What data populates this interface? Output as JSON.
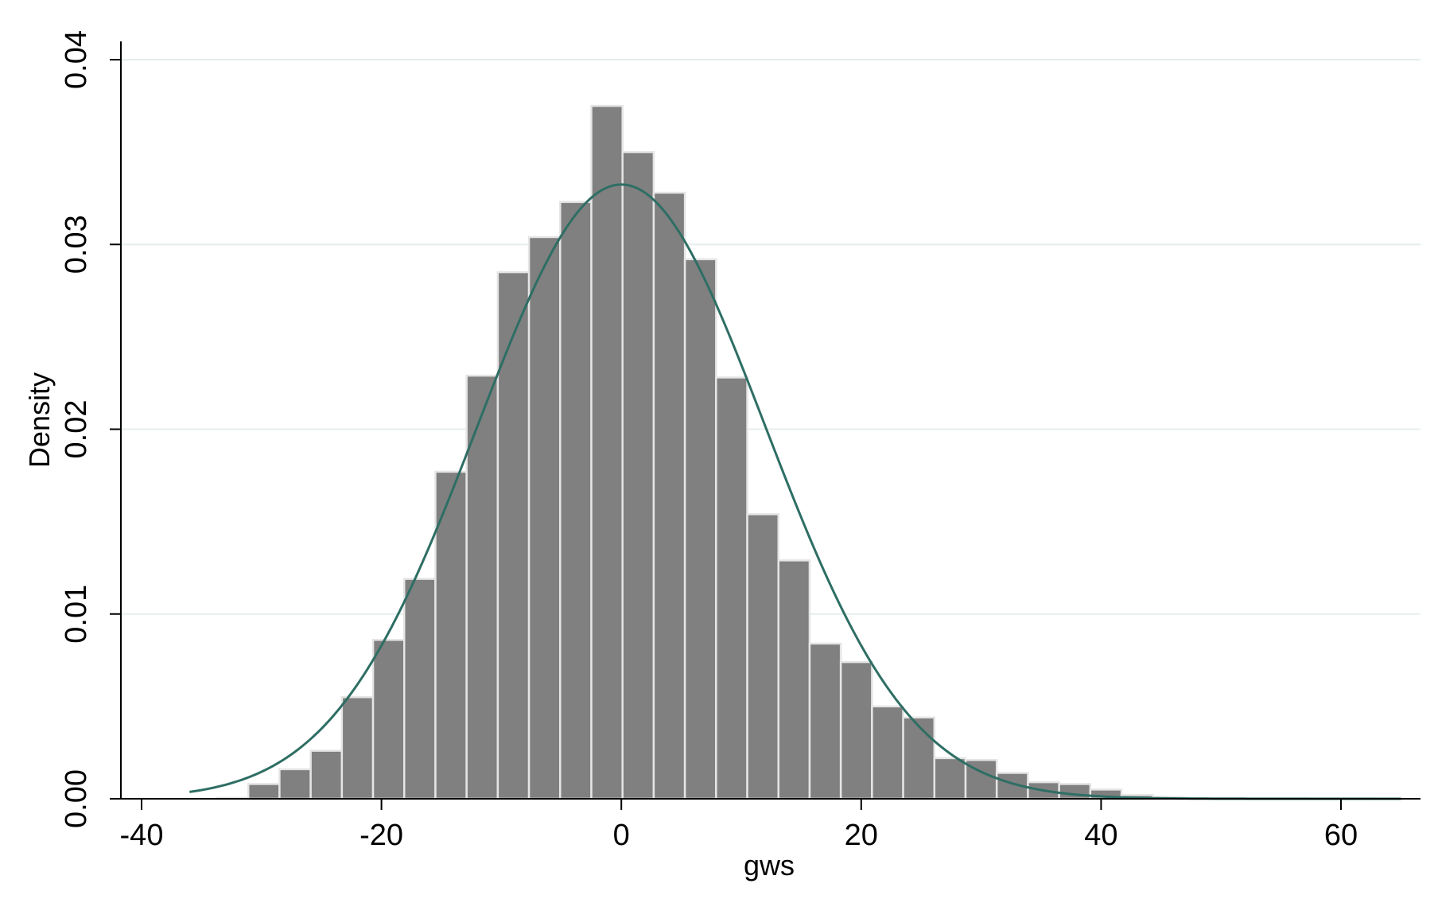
{
  "chart_data": {
    "type": "bar",
    "title": "",
    "xlabel": "gws",
    "ylabel": "Density",
    "xlim": [
      -42,
      67
    ],
    "ylim": [
      0,
      0.041
    ],
    "grid": true,
    "legend": "none",
    "xticks": [
      {
        "value": -40,
        "label": "-40"
      },
      {
        "value": -20,
        "label": "-20"
      },
      {
        "value": 0,
        "label": "0"
      },
      {
        "value": 20,
        "label": "20"
      },
      {
        "value": 40,
        "label": "40"
      },
      {
        "value": 60,
        "label": "60"
      }
    ],
    "yticks": [
      {
        "value": 0,
        "label": "0.00"
      },
      {
        "value": 0.01,
        "label": "0.01"
      },
      {
        "value": 0.02,
        "label": "0.02"
      },
      {
        "value": 0.03,
        "label": "0.03"
      },
      {
        "value": 0.04,
        "label": "0.04"
      }
    ],
    "bin_width": 2.6,
    "bins": [
      {
        "x0": -33.7,
        "value": 5e-05
      },
      {
        "x0": -31.1,
        "value": 0.0008
      },
      {
        "x0": -28.5,
        "value": 0.0016
      },
      {
        "x0": -25.9,
        "value": 0.0026
      },
      {
        "x0": -23.3,
        "value": 0.0055
      },
      {
        "x0": -20.7,
        "value": 0.0086
      },
      {
        "x0": -18.1,
        "value": 0.0119
      },
      {
        "x0": -15.5,
        "value": 0.0177
      },
      {
        "x0": -12.9,
        "value": 0.0229
      },
      {
        "x0": -10.3,
        "value": 0.0285
      },
      {
        "x0": -7.7,
        "value": 0.0304
      },
      {
        "x0": -5.1,
        "value": 0.0323
      },
      {
        "x0": -2.5,
        "value": 0.0375
      },
      {
        "x0": 0.1,
        "value": 0.035
      },
      {
        "x0": 2.7,
        "value": 0.0328
      },
      {
        "x0": 5.3,
        "value": 0.0292
      },
      {
        "x0": 7.9,
        "value": 0.0228
      },
      {
        "x0": 10.5,
        "value": 0.0154
      },
      {
        "x0": 13.1,
        "value": 0.0129
      },
      {
        "x0": 15.7,
        "value": 0.0084
      },
      {
        "x0": 18.3,
        "value": 0.0074
      },
      {
        "x0": 20.9,
        "value": 0.005
      },
      {
        "x0": 23.5,
        "value": 0.0044
      },
      {
        "x0": 26.1,
        "value": 0.0022
      },
      {
        "x0": 28.7,
        "value": 0.0021
      },
      {
        "x0": 31.3,
        "value": 0.0014
      },
      {
        "x0": 33.9,
        "value": 0.0009
      },
      {
        "x0": 36.5,
        "value": 0.0008
      },
      {
        "x0": 39.1,
        "value": 0.0005
      },
      {
        "x0": 41.7,
        "value": 0.0002
      },
      {
        "x0": 44.3,
        "value": 0.0001
      },
      {
        "x0": 46.9,
        "value": 5e-05
      },
      {
        "x0": 49.5,
        "value": 4e-05
      },
      {
        "x0": 52.1,
        "value": 3e-05
      },
      {
        "x0": 54.7,
        "value": 3e-05
      },
      {
        "x0": 57.3,
        "value": 2e-05
      },
      {
        "x0": 59.9,
        "value": 2e-05
      },
      {
        "x0": 62.5,
        "value": 1e-05
      }
    ],
    "normal_curve": {
      "mean": 0,
      "sd": 12,
      "x_range": [
        -36,
        65
      ]
    },
    "colors": {
      "bar_fill": "#808080",
      "bar_outline": "#e5e5e5",
      "curve": "#2e6e64",
      "grid": "#e6eeee",
      "axis": "#000000"
    }
  }
}
